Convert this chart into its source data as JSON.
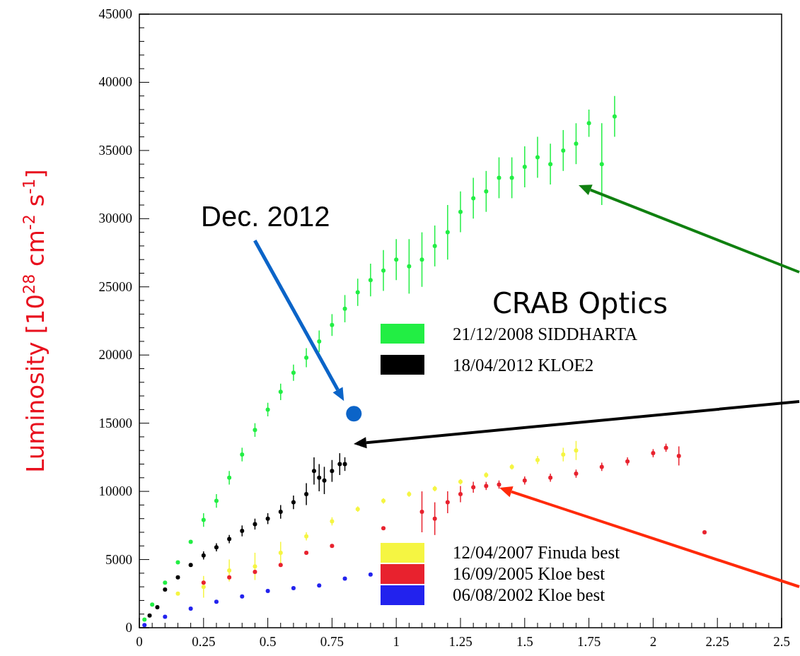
{
  "chart_data": {
    "type": "scatter",
    "ylabel": "Luminosity [10$^{28}$ cm$^{-2}$ s$^{-1}$]",
    "legend_title": "CRAB Optics",
    "legend": "right",
    "marker": "circle",
    "grid": false,
    "xlim": [
      0,
      2.5
    ],
    "xticks": [
      0,
      0.25,
      0.5,
      0.75,
      1,
      1.25,
      1.5,
      1.75,
      2,
      2.25,
      2.5
    ],
    "ylim": [
      0,
      45000
    ],
    "yticks": [
      0,
      5000,
      10000,
      15000,
      20000,
      25000,
      30000,
      35000,
      40000,
      45000
    ],
    "annotations": [
      "Dec. 2012"
    ],
    "series": [
      {
        "name": "21/12/2008 SIDDHARTA",
        "color": "#22ee44",
        "x": [
          0.02,
          0.05,
          0.1,
          0.15,
          0.2,
          0.25,
          0.3,
          0.35,
          0.4,
          0.45,
          0.5,
          0.55,
          0.6,
          0.65,
          0.7,
          0.75,
          0.8,
          0.85,
          0.9,
          0.95,
          1,
          1.05,
          1.1,
          1.15,
          1.2,
          1.25,
          1.3,
          1.35,
          1.4,
          1.45,
          1.5,
          1.55,
          1.6,
          1.65,
          1.7,
          1.75,
          1.8,
          1.85
        ],
        "values": [
          600,
          1700,
          3300,
          4800,
          6300,
          7900,
          9300,
          11000,
          12700,
          14500,
          16000,
          17300,
          18700,
          19800,
          21000,
          22200,
          23400,
          24600,
          25500,
          26200,
          27000,
          26500,
          27000,
          28000,
          29000,
          30500,
          31500,
          32000,
          33000,
          33000,
          33800,
          34500,
          34000,
          35000,
          35500,
          37000,
          34000,
          37500
        ],
        "errors": [
          null,
          null,
          null,
          null,
          null,
          500,
          500,
          500,
          500,
          500,
          500,
          600,
          600,
          700,
          800,
          800,
          1000,
          1000,
          1200,
          1500,
          1500,
          2000,
          2000,
          1500,
          2000,
          1500,
          1500,
          1500,
          1500,
          1500,
          1500,
          1500,
          1500,
          1500,
          1500,
          1000,
          3000,
          1500
        ]
      },
      {
        "name": "18/04/2012 KLOE2",
        "color": "#000000",
        "x": [
          0.04,
          0.07,
          0.1,
          0.15,
          0.2,
          0.25,
          0.3,
          0.35,
          0.4,
          0.45,
          0.5,
          0.55,
          0.6,
          0.65,
          0.68,
          0.7,
          0.72,
          0.75,
          0.78,
          0.8
        ],
        "values": [
          900,
          1500,
          2800,
          3700,
          4600,
          5300,
          5900,
          6500,
          7100,
          7600,
          8000,
          8500,
          9200,
          9800,
          11500,
          11000,
          10800,
          11500,
          12000,
          12000
        ],
        "errors": [
          null,
          null,
          null,
          null,
          null,
          300,
          300,
          300,
          400,
          400,
          400,
          500,
          500,
          800,
          1000,
          1000,
          1000,
          800,
          800,
          500
        ]
      },
      {
        "name": "12/04/2007 Finuda best",
        "color": "#f5f542",
        "x": [
          0.15,
          0.25,
          0.35,
          0.45,
          0.55,
          0.65,
          0.75,
          0.85,
          0.95,
          1.05,
          1.15,
          1.25,
          1.35,
          1.45,
          1.55,
          1.65,
          1.7
        ],
        "values": [
          2500,
          3000,
          4200,
          4500,
          5500,
          6700,
          7800,
          8700,
          9300,
          9800,
          10200,
          10700,
          11200,
          11800,
          12300,
          12700,
          13000
        ],
        "errors": [
          null,
          800,
          800,
          1000,
          800,
          300,
          300,
          200,
          200,
          200,
          200,
          200,
          200,
          200,
          300,
          500,
          700
        ]
      },
      {
        "name": "16/09/2005 Kloe best",
        "color": "#e8222e",
        "x": [
          0.25,
          0.35,
          0.45,
          0.55,
          0.65,
          0.75,
          0.95,
          1.1,
          1.15,
          1.2,
          1.25,
          1.3,
          1.35,
          1.4,
          1.5,
          1.6,
          1.7,
          1.8,
          1.9,
          2,
          2.05,
          2.1,
          2.2
        ],
        "values": [
          3300,
          3700,
          4100,
          4600,
          5500,
          6000,
          7300,
          8500,
          8000,
          9200,
          9800,
          10300,
          10400,
          10500,
          10800,
          11000,
          11300,
          11800,
          12200,
          12800,
          13200,
          12600,
          7000
        ],
        "errors": [
          null,
          null,
          null,
          null,
          null,
          null,
          null,
          1500,
          1200,
          800,
          600,
          400,
          300,
          300,
          300,
          300,
          300,
          300,
          300,
          300,
          300,
          700,
          null
        ]
      },
      {
        "name": "06/08/2002 Kloe best",
        "color": "#2222ee",
        "x": [
          0.02,
          0.1,
          0.2,
          0.3,
          0.4,
          0.5,
          0.6,
          0.7,
          0.8,
          0.9
        ],
        "values": [
          200,
          800,
          1400,
          1900,
          2300,
          2700,
          2900,
          3100,
          3600,
          3900
        ]
      },
      {
        "color": "#0b64c8",
        "x": [
          0.835
        ],
        "values": [
          15700
        ]
      }
    ]
  }
}
